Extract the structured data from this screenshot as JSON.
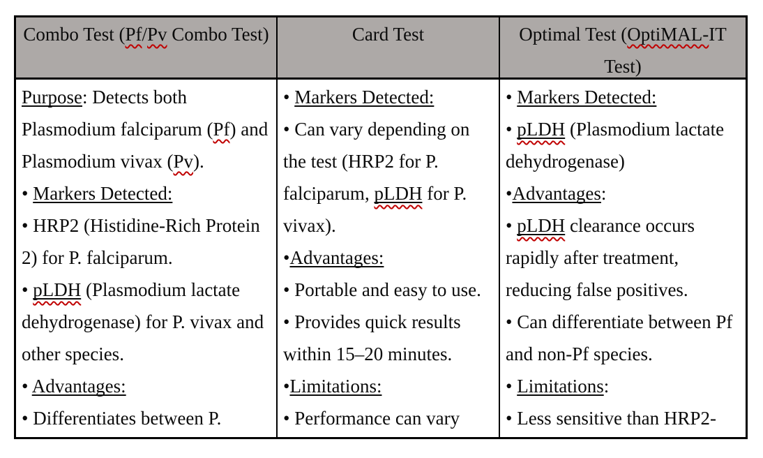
{
  "page": {
    "background": "#ffffff"
  },
  "table": {
    "border_color": "#000000",
    "header_bg": "#ada9a7",
    "spell_color": "#c00000",
    "columns": [
      {
        "id": "combo-test",
        "header_lines": [
          [
            {
              "t": "Combo Test (",
              "s": "p"
            },
            {
              "t": "Pf",
              "s": "sp"
            },
            {
              "t": "/",
              "s": "p"
            },
            {
              "t": "Pv",
              "s": "sp"
            },
            {
              "t": " Combo Test)",
              "s": "p"
            }
          ]
        ],
        "lines": [
          [
            {
              "t": "Purpose",
              "s": "u"
            },
            {
              "t": ": Detects both",
              "s": "p"
            }
          ],
          [
            {
              "t": "Plasmodium falciparum (",
              "s": "p"
            },
            {
              "t": "Pf",
              "s": "sp"
            },
            {
              "t": ") and",
              "s": "p"
            }
          ],
          [
            {
              "t": "Plasmodium vivax (",
              "s": "p"
            },
            {
              "t": "Pv",
              "s": "sp"
            },
            {
              "t": ").",
              "s": "p"
            }
          ],
          [
            {
              "t": "• ",
              "s": "p"
            },
            {
              "t": "Markers Detected:",
              "s": "u"
            }
          ],
          [
            {
              "t": "• HRP2 (Histidine-Rich Protein",
              "s": "p"
            }
          ],
          [
            {
              "t": "2) for P. falciparum.",
              "s": "p"
            }
          ],
          [
            {
              "t": "• ",
              "s": "p"
            },
            {
              "t": "pLDH",
              "s": "usp"
            },
            {
              "t": " (Plasmodium lactate",
              "s": "p"
            }
          ],
          [
            {
              "t": "dehydrogenase) for P. vivax and",
              "s": "p"
            }
          ],
          [
            {
              "t": "other species.",
              "s": "p"
            }
          ],
          [
            {
              "t": "• ",
              "s": "p"
            },
            {
              "t": "Advantages:",
              "s": "u"
            }
          ],
          [
            {
              "t": "• Differentiates between P.",
              "s": "p"
            }
          ]
        ]
      },
      {
        "id": "card-test",
        "header_lines": [
          [
            {
              "t": "Card Test",
              "s": "p"
            }
          ]
        ],
        "lines": [
          [
            {
              "t": "• ",
              "s": "p"
            },
            {
              "t": "Markers Detected:",
              "s": "u"
            }
          ],
          [
            {
              "t": "• Can vary depending on",
              "s": "p"
            }
          ],
          [
            {
              "t": "the test (HRP2 for P.",
              "s": "p"
            }
          ],
          [
            {
              "t": "falciparum, ",
              "s": "p"
            },
            {
              "t": "pLDH",
              "s": "usp"
            },
            {
              "t": " for P.",
              "s": "p"
            }
          ],
          [
            {
              "t": "vivax).",
              "s": "p"
            }
          ],
          [
            {
              "t": "•",
              "s": "p"
            },
            {
              "t": "Advantages:",
              "s": "u"
            }
          ],
          [
            {
              "t": "• Portable and easy to use.",
              "s": "p"
            }
          ],
          [
            {
              "t": "• Provides quick results",
              "s": "p"
            }
          ],
          [
            {
              "t": "within 15–20 minutes.",
              "s": "p"
            }
          ],
          [
            {
              "t": "•",
              "s": "p"
            },
            {
              "t": "Limitations:",
              "s": "u"
            }
          ],
          [
            {
              "t": "• Performance can vary",
              "s": "p"
            }
          ]
        ]
      },
      {
        "id": "optimal-test",
        "header_lines": [
          [
            {
              "t": "Optimal Test (",
              "s": "p"
            },
            {
              "t": "OptiMAL-",
              "s": "sp"
            },
            {
              "t": "IT",
              "s": "p"
            }
          ],
          [
            {
              "t": "Test)",
              "s": "p"
            }
          ]
        ],
        "lines": [
          [
            {
              "t": "• ",
              "s": "p"
            },
            {
              "t": "Markers Detected:",
              "s": "u"
            }
          ],
          [
            {
              "t": "• ",
              "s": "p"
            },
            {
              "t": "pLDH",
              "s": "usp"
            },
            {
              "t": " (Plasmodium lactate",
              "s": "p"
            }
          ],
          [
            {
              "t": "dehydrogenase)",
              "s": "p"
            }
          ],
          [
            {
              "t": "•",
              "s": "p"
            },
            {
              "t": "Advantages",
              "s": "u"
            },
            {
              "t": ":",
              "s": "p"
            }
          ],
          [
            {
              "t": "• ",
              "s": "p"
            },
            {
              "t": "pLDH",
              "s": "usp"
            },
            {
              "t": " clearance occurs",
              "s": "p"
            }
          ],
          [
            {
              "t": "rapidly after treatment,",
              "s": "p"
            }
          ],
          [
            {
              "t": "reducing false positives.",
              "s": "p"
            }
          ],
          [
            {
              "t": "• Can differentiate between Pf",
              "s": "p"
            }
          ],
          [
            {
              "t": "and non-Pf species.",
              "s": "p"
            }
          ],
          [
            {
              "t": "• ",
              "s": "p"
            },
            {
              "t": "Limitations",
              "s": "u"
            },
            {
              "t": ":",
              "s": "p"
            }
          ],
          [
            {
              "t": "• Less sensitive than HRP2-",
              "s": "p"
            }
          ]
        ]
      }
    ]
  }
}
